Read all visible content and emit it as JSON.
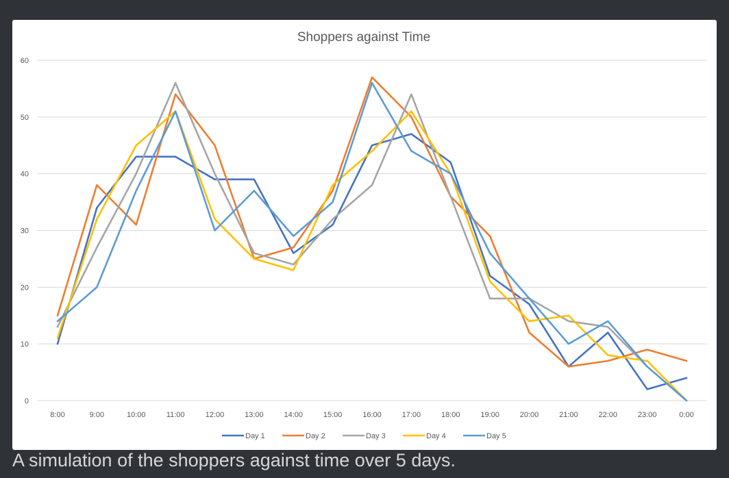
{
  "caption": "A simulation of the shoppers against time over 5 days.",
  "chart_data": {
    "type": "line",
    "title": "Shoppers against Time",
    "xlabel": "",
    "ylabel": "",
    "categories": [
      "8:00",
      "9:00",
      "10:00",
      "11:00",
      "12:00",
      "13:00",
      "14:00",
      "15:00",
      "16:00",
      "17:00",
      "18:00",
      "19:00",
      "20:00",
      "21:00",
      "22:00",
      "23:00",
      "0:00"
    ],
    "ylim": [
      0,
      60
    ],
    "yticks": [
      0,
      10,
      20,
      30,
      40,
      50,
      60
    ],
    "grid": true,
    "legend_position": "bottom",
    "series": [
      {
        "name": "Day 1",
        "color": "#4472c4",
        "values": [
          10,
          34,
          43,
          43,
          39,
          39,
          26,
          31,
          45,
          47,
          42,
          22,
          17,
          6,
          12,
          2,
          4
        ]
      },
      {
        "name": "Day 2",
        "color": "#ed7d31",
        "values": [
          15,
          38,
          31,
          54,
          45,
          25,
          27,
          37,
          57,
          50,
          36,
          29,
          12,
          6,
          7,
          9,
          7
        ]
      },
      {
        "name": "Day 3",
        "color": "#a5a5a5",
        "values": [
          13,
          27,
          40,
          56,
          40,
          26,
          24,
          32,
          38,
          54,
          36,
          18,
          18,
          14,
          13,
          6,
          0
        ]
      },
      {
        "name": "Day 4",
        "color": "#ffc000",
        "values": [
          11,
          32,
          45,
          51,
          32,
          25,
          23,
          38,
          44,
          51,
          40,
          21,
          14,
          15,
          8,
          7,
          0
        ]
      },
      {
        "name": "Day 5",
        "color": "#5b9bd5",
        "values": [
          14,
          20,
          37,
          51,
          30,
          37,
          29,
          35,
          56,
          44,
          40,
          26,
          18,
          10,
          14,
          6,
          0
        ]
      }
    ]
  }
}
